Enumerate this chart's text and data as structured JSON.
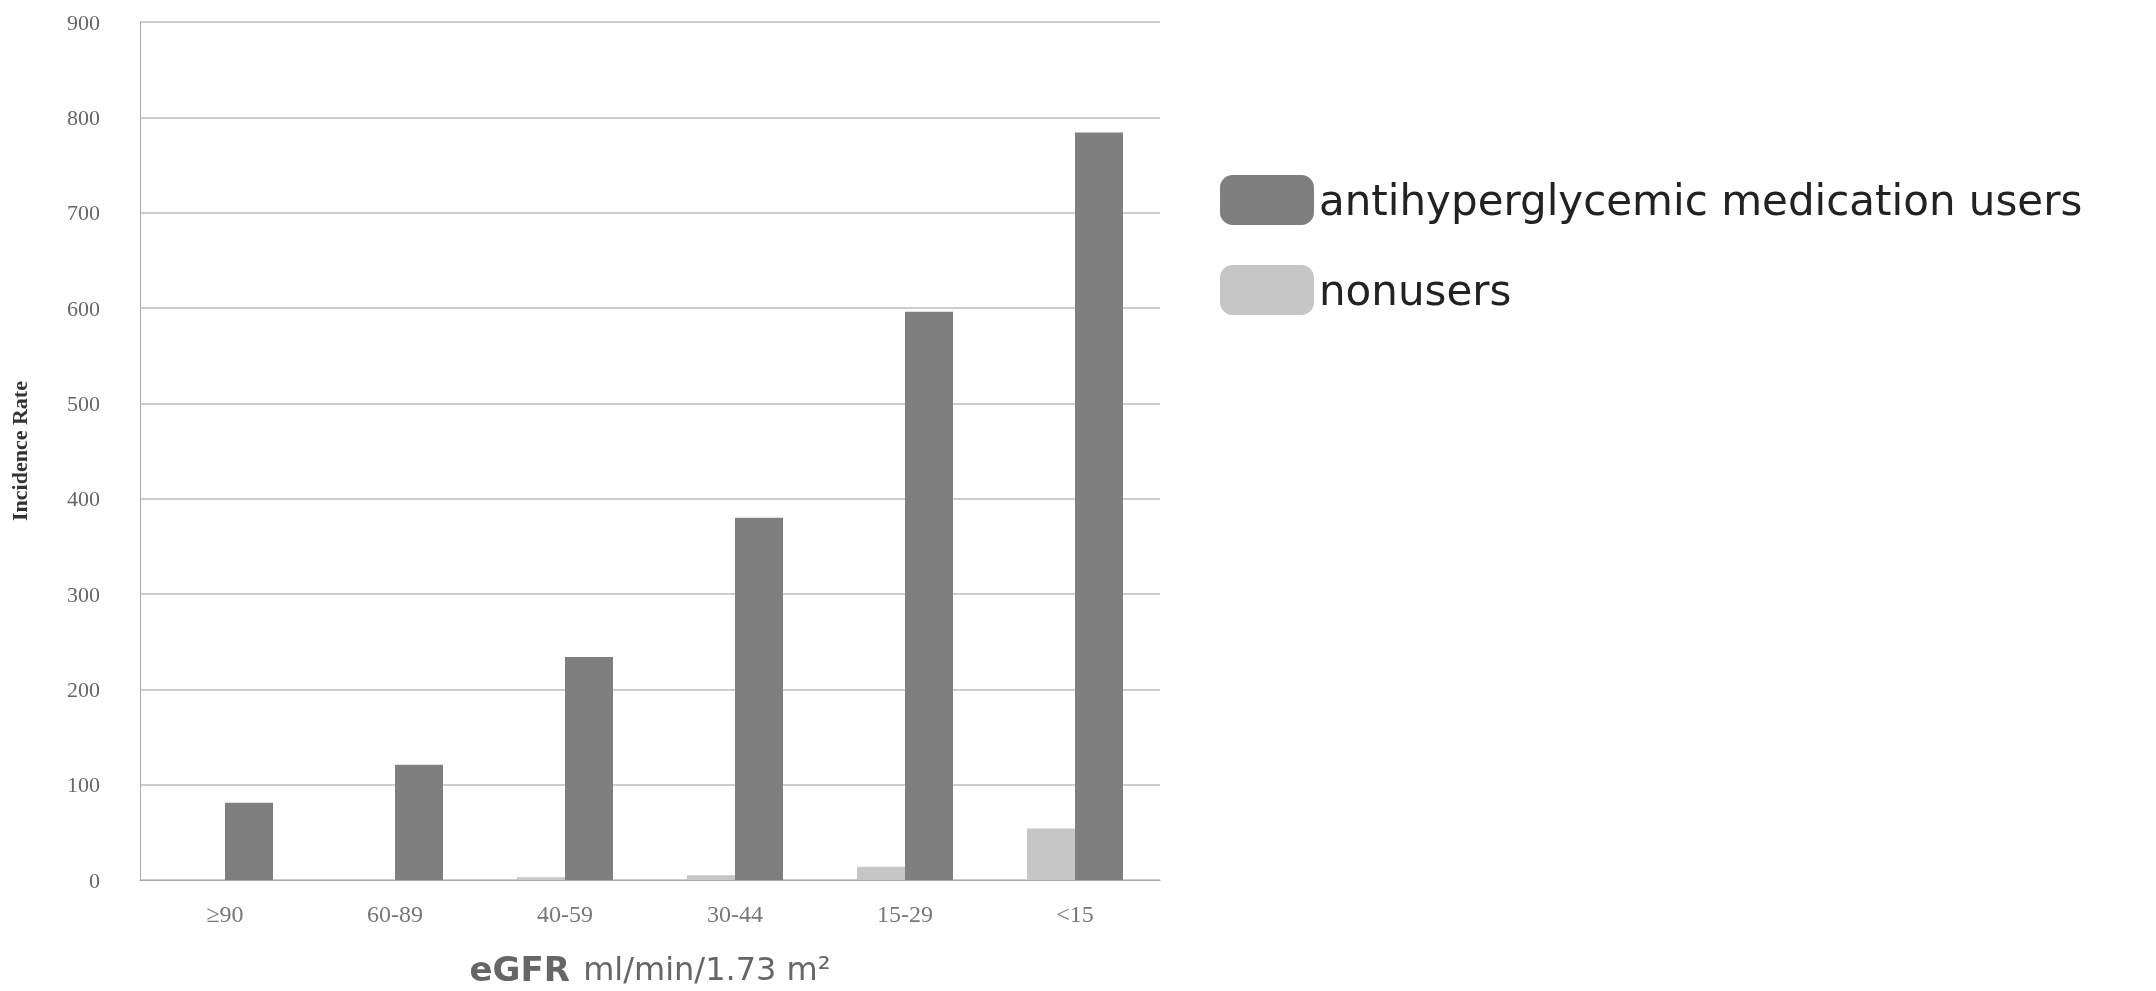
{
  "chart_data": {
    "type": "bar",
    "ylabel": "Incidence Rate",
    "xlabel": "eGFR ml/min/1.73 m²",
    "categories": [
      "≥90",
      "60-89",
      "40-59",
      "30-44",
      "15-29",
      "<15"
    ],
    "series": [
      {
        "name": "nonusers",
        "color": "#c6c6c6",
        "values": [
          null,
          null,
          3,
          5,
          14,
          54
        ]
      },
      {
        "name": "antihyperglycemic medication users",
        "color": "#7f7f7f",
        "values": [
          81,
          121,
          234,
          380,
          596,
          784
        ]
      }
    ],
    "ylim": [
      0,
      900
    ],
    "yticks": [
      0,
      100,
      200,
      300,
      400,
      500,
      600,
      700,
      800,
      900
    ],
    "grid": "y",
    "legend": "right"
  }
}
